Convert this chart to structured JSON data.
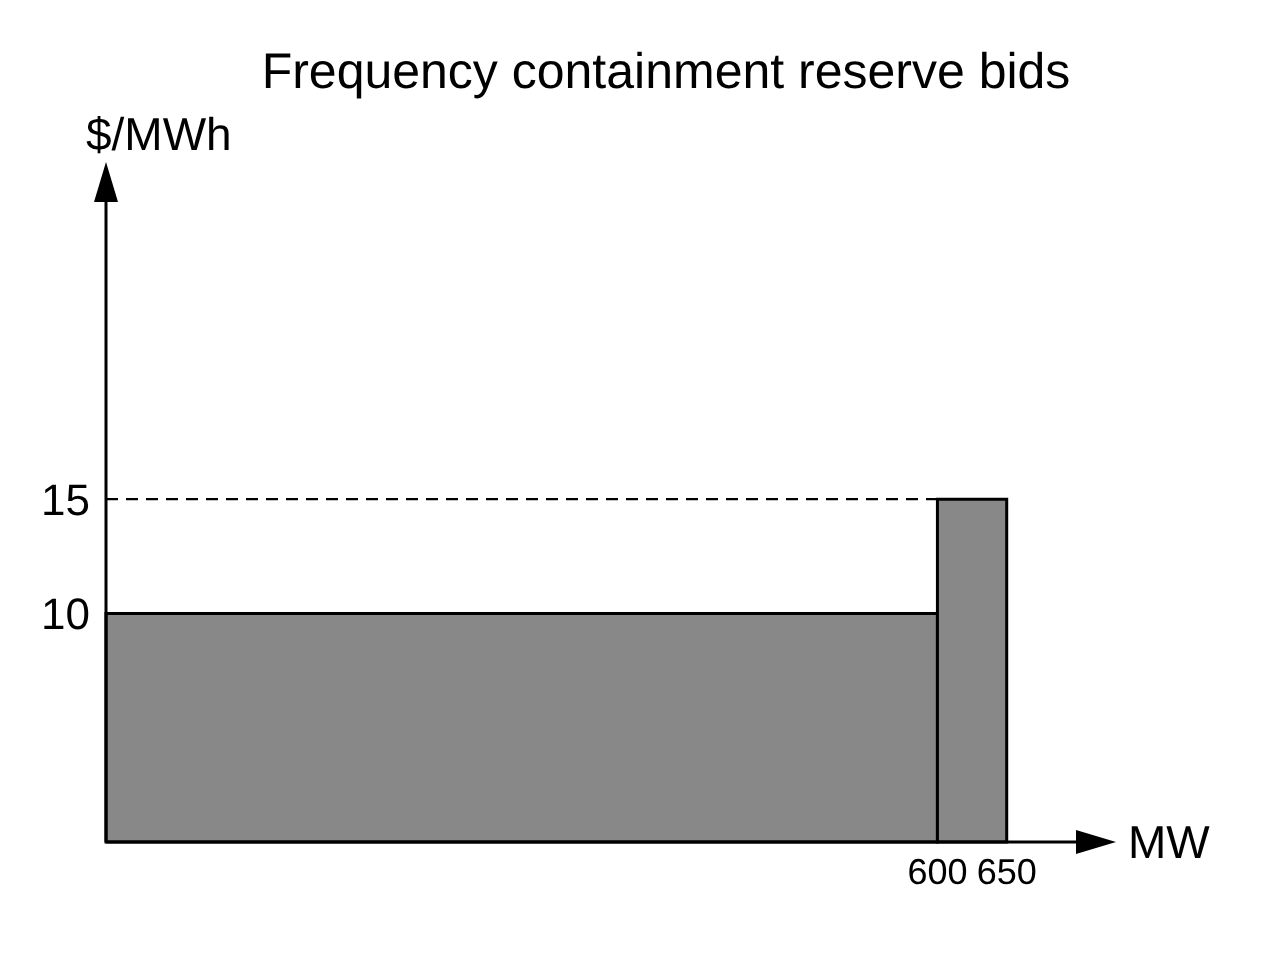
{
  "chart_data": {
    "type": "histogram",
    "title": "Frequency containment reserve bids",
    "xlabel": "MW",
    "ylabel": "$/MWh",
    "bins": [
      0,
      600,
      650
    ],
    "values": [
      10,
      15
    ],
    "color": "#888888",
    "xlim": [
      0,
      700
    ],
    "xticks": [
      600,
      650
    ],
    "ylim": [
      0,
      28
    ],
    "yticks": [
      10,
      15
    ],
    "ref_lines": [
      {
        "axis": "y",
        "value": 15,
        "line_style": "dashed",
        "color": "#000000"
      }
    ]
  }
}
